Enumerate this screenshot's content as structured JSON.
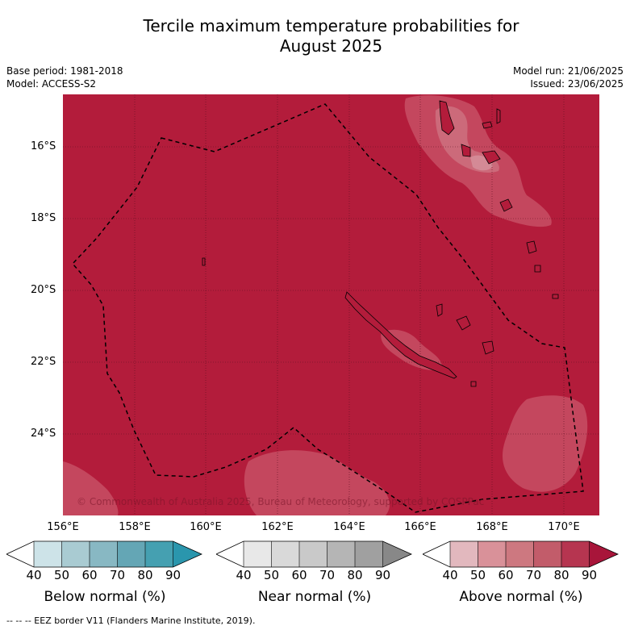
{
  "title": {
    "line1": "Tercile maximum temperature probabilities for",
    "line2": "August 2025"
  },
  "meta": {
    "base_period": "Base period: 1981-2018",
    "model": "Model: ACCESS-S2",
    "model_run": "Model run: 21/06/2025",
    "issued": "Issued: 23/06/2025"
  },
  "map": {
    "lat_labels": [
      "16°S",
      "18°S",
      "20°S",
      "22°S",
      "24°S"
    ],
    "lon_labels": [
      "156°E",
      "158°E",
      "160°E",
      "162°E",
      "164°E",
      "166°E",
      "168°E",
      "170°E"
    ],
    "copyright": "© Commonwealth of Australia 2025, Bureau of Meteorology, supported by COSPPac",
    "colors": {
      "dominant_above_90": "#b31c3b",
      "above_80": "#c4475e",
      "above_70": "#cc6a7a",
      "land_outline": "#000000",
      "grid": "#555555"
    }
  },
  "legends": {
    "ticks": [
      "40",
      "50",
      "60",
      "70",
      "80",
      "90"
    ],
    "below": {
      "label": "Below normal (%)",
      "colors": [
        "#ffffff",
        "#cde3e8",
        "#a9cbd2",
        "#88b8c3",
        "#64a6b5",
        "#45a0b1",
        "#2a96ad"
      ]
    },
    "near": {
      "label": "Near normal (%)",
      "colors": [
        "#ffffff",
        "#e8e8e8",
        "#d9d9d9",
        "#c9c9c9",
        "#b5b5b5",
        "#a0a0a0",
        "#888888"
      ]
    },
    "above": {
      "label": "Above normal (%)",
      "colors": [
        "#ffffff",
        "#e2b8be",
        "#d99199",
        "#cd7880",
        "#c25c6a",
        "#b63550",
        "#a8153a"
      ]
    }
  },
  "footer": "--  --  -- EEZ border V11 (Flanders Marine Institute, 2019)."
}
